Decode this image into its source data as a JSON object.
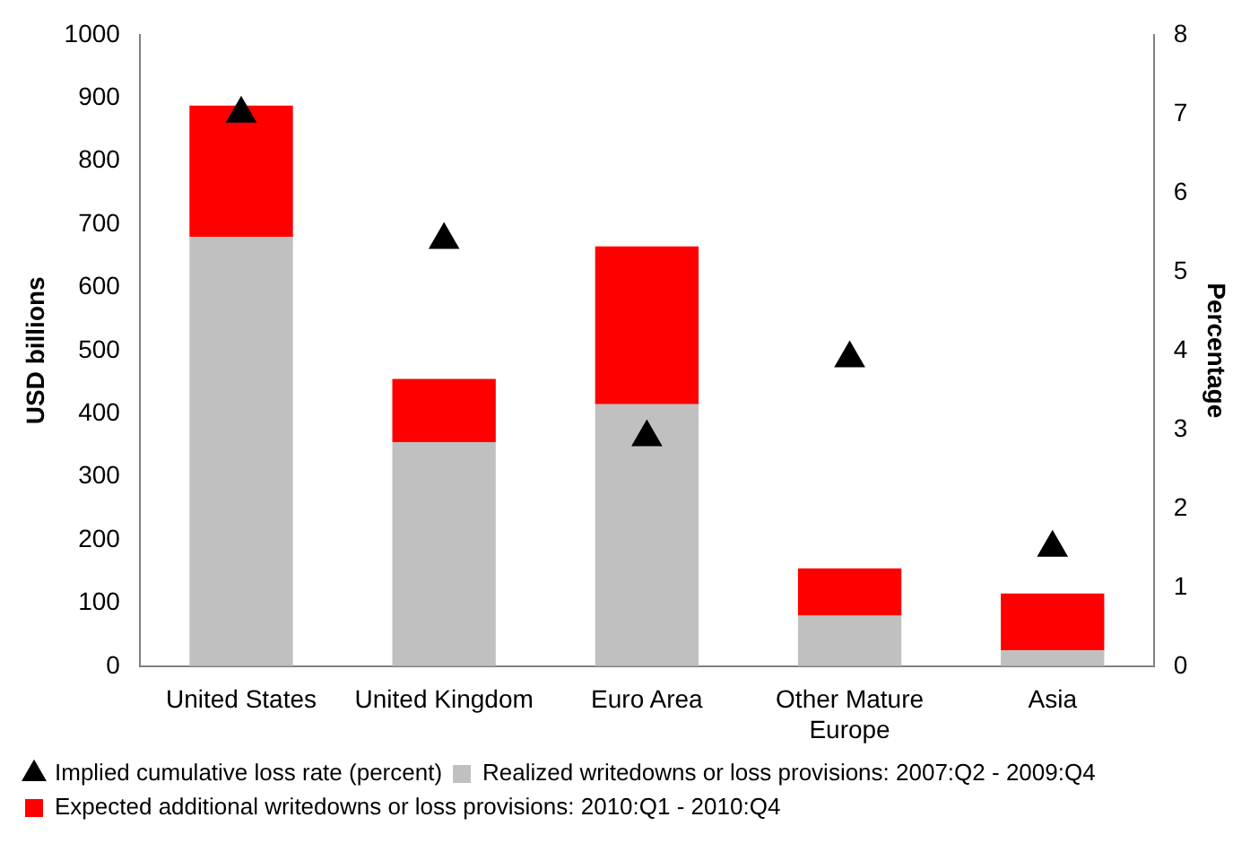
{
  "chart_data": {
    "type": "bar",
    "stacked": true,
    "categories": [
      "United States",
      "United Kingdom",
      "Euro Area",
      "Other Mature Europe",
      "Asia"
    ],
    "series": [
      {
        "name": "Realized writedowns or loss provisions: 2007:Q2 - 2009:Q4",
        "color": "#c0c0c0",
        "values": [
          680,
          355,
          415,
          80,
          25
        ]
      },
      {
        "name": "Expected additional writedowns or loss provisions: 2010:Q1 - 2010:Q4",
        "color": "#ff0000",
        "values": [
          208,
          100,
          250,
          75,
          90
        ]
      },
      {
        "name": "Implied cumulative loss rate (percent)",
        "type": "scatter",
        "axis": "y2",
        "marker": "triangle",
        "color": "#000000",
        "values": [
          7.0,
          5.4,
          2.9,
          3.9,
          1.5
        ]
      }
    ],
    "ylabel": "USD billions",
    "y2label": "Percentage",
    "ylim": [
      0,
      1000
    ],
    "yticks": [
      0,
      100,
      200,
      300,
      400,
      500,
      600,
      700,
      800,
      900,
      1000
    ],
    "y2lim": [
      0,
      8
    ],
    "y2ticks": [
      0,
      1,
      2,
      3,
      4,
      5,
      6,
      7,
      8
    ],
    "grid": false,
    "legend": "bottom"
  }
}
